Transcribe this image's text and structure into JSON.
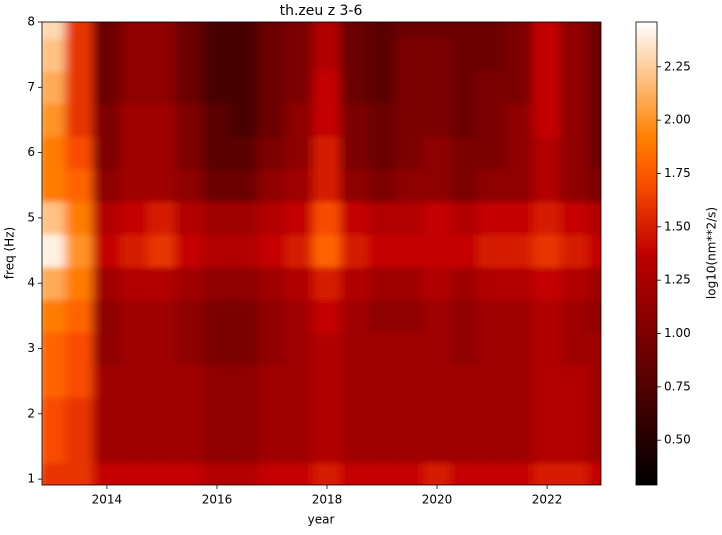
{
  "chart_data": {
    "type": "heatmap",
    "title": "th.zeu z 3-6",
    "x_label": "year",
    "y_label": "freq (Hz)",
    "colorbar_label": "log10(nm**2/s)",
    "colormap": "gist_heat",
    "x": [
      2013.0,
      2013.5,
      2014.0,
      2014.5,
      2015.0,
      2015.5,
      2016.0,
      2016.5,
      2017.0,
      2017.5,
      2018.0,
      2018.5,
      2019.0,
      2019.5,
      2020.0,
      2020.5,
      2021.0,
      2021.5,
      2022.0,
      2022.5,
      2023.0
    ],
    "y": [
      1.0,
      1.5,
      2.0,
      2.5,
      3.0,
      3.5,
      4.0,
      4.5,
      5.0,
      5.5,
      6.0,
      6.5,
      7.0,
      7.5,
      8.0
    ],
    "values": [
      [
        1.6,
        1.6,
        1.4,
        1.4,
        1.4,
        1.4,
        1.3,
        1.3,
        1.4,
        1.4,
        1.5,
        1.4,
        1.4,
        1.4,
        1.5,
        1.4,
        1.4,
        1.4,
        1.5,
        1.5,
        1.4
      ],
      [
        1.7,
        1.6,
        1.2,
        1.2,
        1.2,
        1.2,
        1.1,
        1.1,
        1.2,
        1.2,
        1.3,
        1.2,
        1.2,
        1.2,
        1.2,
        1.2,
        1.2,
        1.2,
        1.3,
        1.3,
        1.2
      ],
      [
        1.7,
        1.6,
        1.2,
        1.2,
        1.2,
        1.2,
        1.1,
        1.1,
        1.2,
        1.2,
        1.3,
        1.2,
        1.2,
        1.2,
        1.2,
        1.2,
        1.2,
        1.2,
        1.3,
        1.3,
        1.2
      ],
      [
        1.8,
        1.7,
        1.2,
        1.2,
        1.2,
        1.2,
        1.1,
        1.1,
        1.2,
        1.2,
        1.3,
        1.2,
        1.2,
        1.2,
        1.2,
        1.2,
        1.2,
        1.2,
        1.3,
        1.3,
        1.2
      ],
      [
        1.8,
        1.7,
        1.1,
        1.2,
        1.2,
        1.1,
        1.0,
        1.0,
        1.1,
        1.2,
        1.3,
        1.2,
        1.2,
        1.2,
        1.2,
        1.1,
        1.2,
        1.2,
        1.3,
        1.2,
        1.2
      ],
      [
        1.9,
        1.8,
        1.1,
        1.2,
        1.2,
        1.1,
        1.0,
        1.0,
        1.1,
        1.2,
        1.4,
        1.2,
        1.1,
        1.1,
        1.2,
        1.1,
        1.2,
        1.2,
        1.3,
        1.2,
        1.1
      ],
      [
        2.1,
        1.9,
        1.2,
        1.3,
        1.3,
        1.2,
        1.1,
        1.1,
        1.2,
        1.3,
        1.5,
        1.3,
        1.2,
        1.2,
        1.3,
        1.2,
        1.3,
        1.3,
        1.4,
        1.3,
        1.2
      ],
      [
        2.4,
        2.0,
        1.4,
        1.5,
        1.6,
        1.4,
        1.3,
        1.3,
        1.4,
        1.5,
        1.8,
        1.5,
        1.4,
        1.4,
        1.4,
        1.4,
        1.5,
        1.5,
        1.6,
        1.5,
        1.4
      ],
      [
        2.2,
        1.9,
        1.3,
        1.4,
        1.5,
        1.3,
        1.2,
        1.2,
        1.3,
        1.4,
        1.7,
        1.4,
        1.3,
        1.3,
        1.4,
        1.3,
        1.4,
        1.4,
        1.5,
        1.4,
        1.3
      ],
      [
        1.9,
        1.8,
        1.1,
        1.2,
        1.2,
        1.1,
        0.9,
        0.9,
        1.1,
        1.2,
        1.5,
        1.1,
        1.0,
        1.1,
        1.1,
        1.0,
        1.1,
        1.1,
        1.3,
        1.1,
        1.0
      ],
      [
        1.9,
        1.7,
        1.0,
        1.2,
        1.2,
        1.0,
        0.8,
        0.8,
        1.0,
        1.1,
        1.5,
        1.0,
        0.9,
        1.0,
        1.1,
        1.0,
        1.0,
        1.1,
        1.3,
        1.1,
        0.9
      ],
      [
        2.0,
        1.6,
        1.0,
        1.2,
        1.2,
        1.0,
        0.8,
        0.7,
        0.9,
        1.1,
        1.4,
        1.0,
        0.9,
        1.0,
        1.0,
        0.9,
        1.0,
        1.1,
        1.4,
        1.1,
        0.9
      ],
      [
        2.1,
        1.6,
        0.9,
        1.1,
        1.1,
        0.9,
        0.7,
        0.7,
        0.9,
        1.0,
        1.4,
        0.9,
        0.8,
        1.0,
        1.0,
        0.9,
        1.0,
        1.0,
        1.4,
        1.1,
        0.9
      ],
      [
        2.2,
        1.6,
        0.9,
        1.1,
        1.1,
        0.9,
        0.7,
        0.7,
        0.9,
        1.0,
        1.3,
        0.9,
        0.8,
        1.0,
        1.0,
        0.9,
        0.9,
        1.0,
        1.4,
        1.1,
        0.9
      ],
      [
        2.3,
        1.6,
        0.9,
        1.1,
        1.1,
        0.9,
        0.7,
        0.7,
        0.9,
        1.0,
        1.3,
        0.9,
        0.8,
        0.9,
        0.9,
        0.9,
        0.9,
        1.0,
        1.4,
        1.1,
        0.9
      ]
    ],
    "xlim": [
      2012.82,
      2022.98
    ],
    "ylim": [
      0.91,
      8
    ],
    "xticks": [
      2014,
      2016,
      2018,
      2020,
      2022
    ],
    "yticks": [
      1,
      2,
      3,
      4,
      5,
      6,
      7,
      8
    ],
    "clim": [
      0.29,
      2.46
    ],
    "cticks": [
      {
        "value": 0.5,
        "label": "0.50"
      },
      {
        "value": 0.75,
        "label": "0.75"
      },
      {
        "value": 1.0,
        "label": "1.00"
      },
      {
        "value": 1.25,
        "label": "1.25"
      },
      {
        "value": 1.5,
        "label": "1.50"
      },
      {
        "value": 1.75,
        "label": "1.75"
      },
      {
        "value": 2.0,
        "label": "2.00"
      },
      {
        "value": 2.25,
        "label": "2.25"
      }
    ]
  }
}
